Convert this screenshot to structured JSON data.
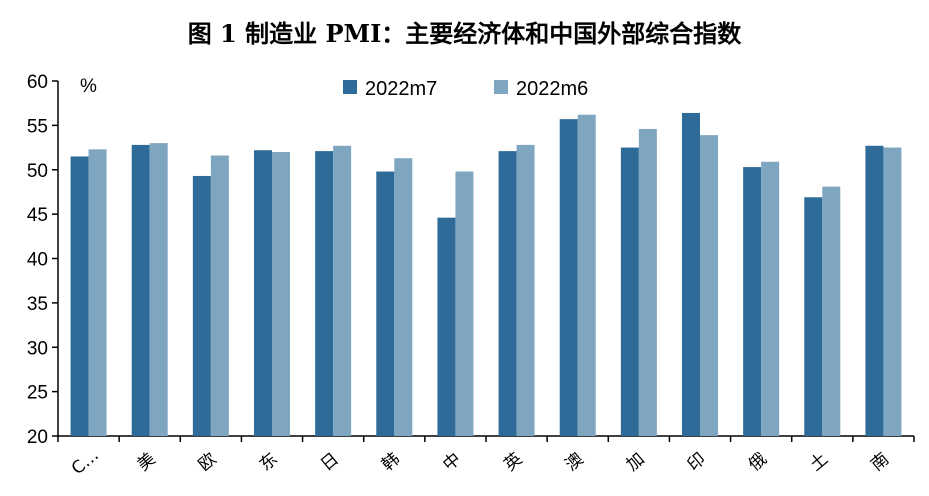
{
  "chart_data": {
    "type": "bar",
    "title": "图 1 制造业 PMI：主要经济体和中国外部综合指数",
    "ylabel": "%",
    "xlabel": "",
    "ylim": [
      20,
      60
    ],
    "yticks": [
      20,
      25,
      30,
      35,
      40,
      45,
      50,
      55,
      60
    ],
    "grid": false,
    "legend_position": "top-center",
    "categories": [
      "C…",
      "美",
      "欧",
      "东",
      "日",
      "韩",
      "中",
      "英",
      "澳",
      "加",
      "印",
      "俄",
      "土",
      "南"
    ],
    "series": [
      {
        "name": "2022m7",
        "color": "#2e6b99",
        "values": [
          51.5,
          52.8,
          49.3,
          52.2,
          52.1,
          49.8,
          44.6,
          52.1,
          55.7,
          52.5,
          56.4,
          50.3,
          46.9,
          52.7
        ]
      },
      {
        "name": "2022m6",
        "color": "#7fa6c0",
        "values": [
          52.3,
          53.0,
          51.6,
          52.0,
          52.7,
          51.3,
          49.8,
          52.8,
          56.2,
          54.6,
          53.9,
          50.9,
          48.1,
          52.5
        ]
      }
    ]
  }
}
